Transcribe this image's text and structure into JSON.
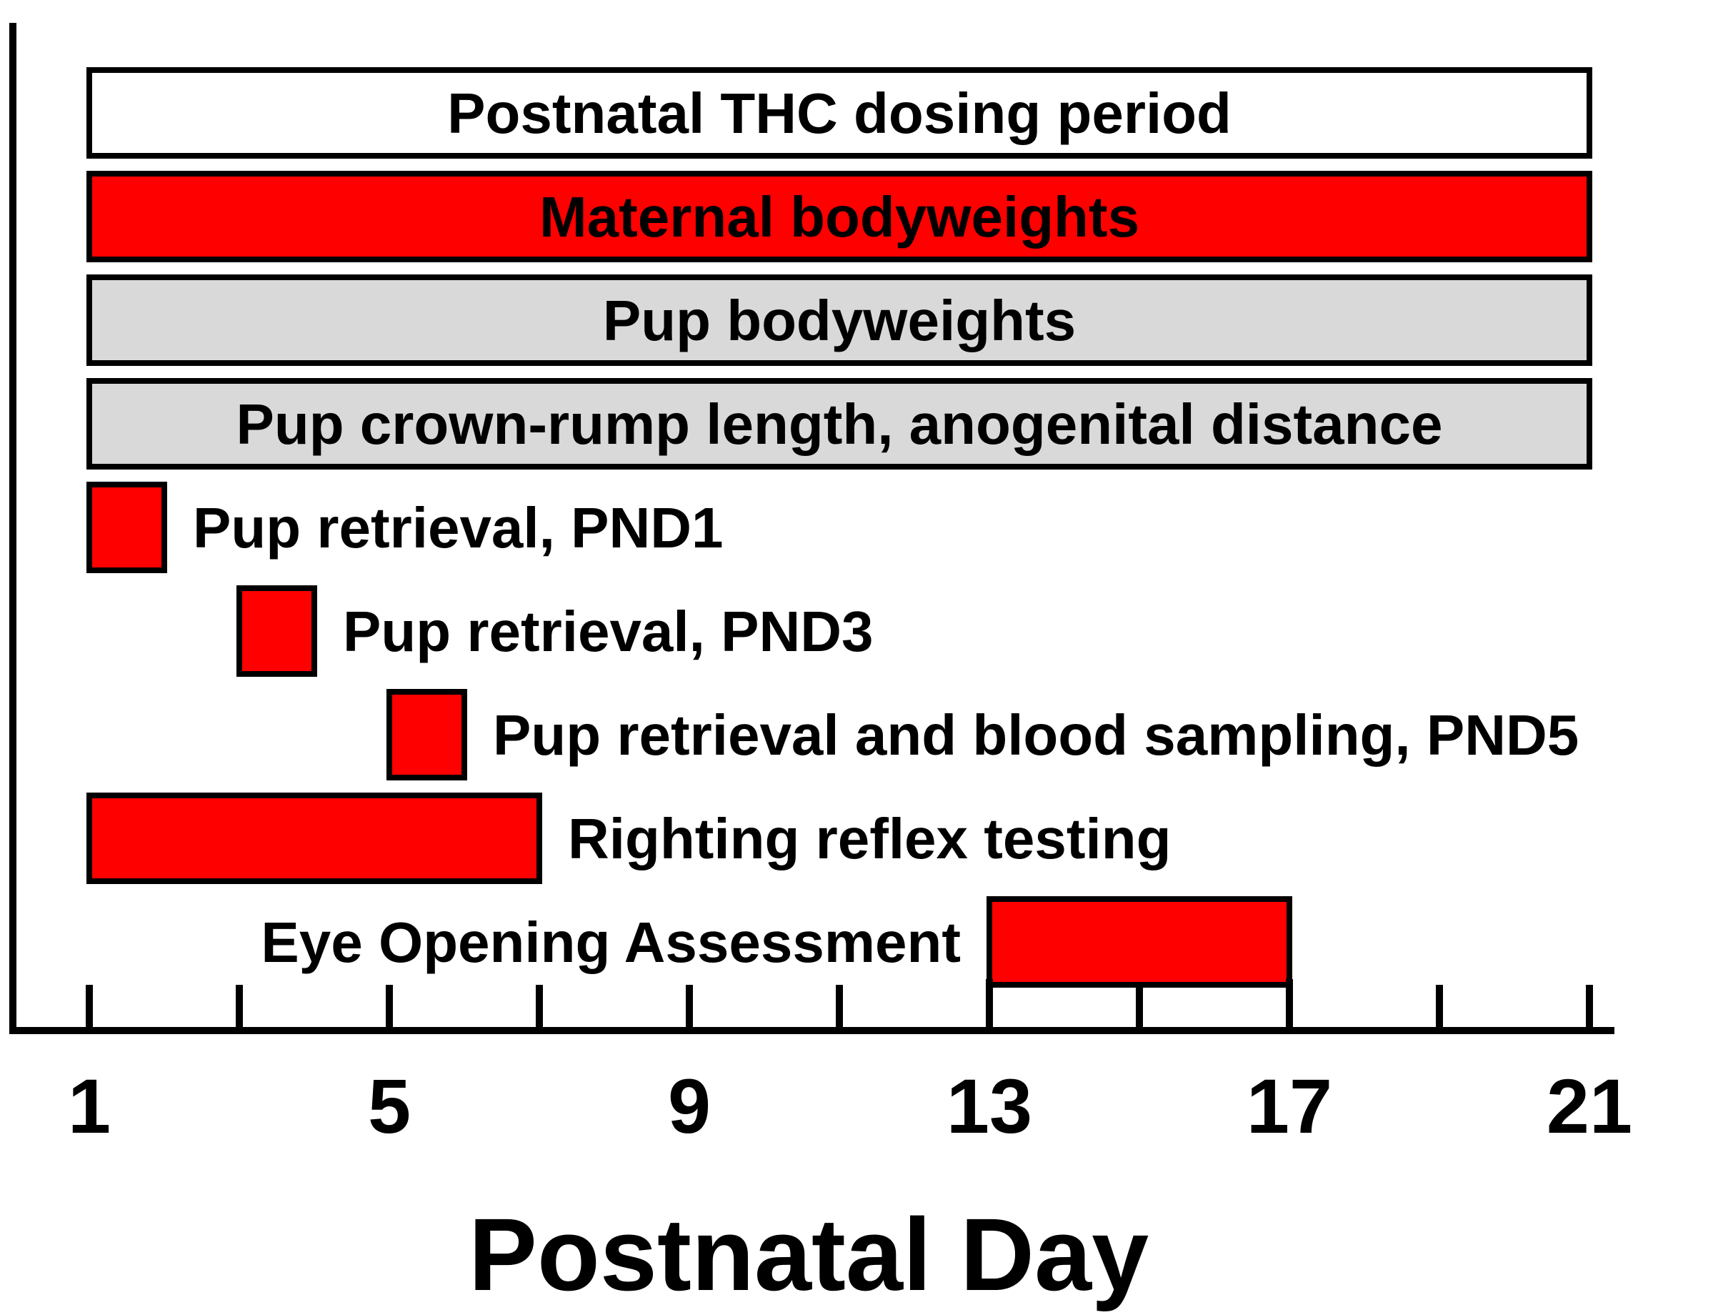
{
  "chart_data": {
    "type": "gantt",
    "xlabel": "Postnatal Day",
    "xlim": [
      1,
      21
    ],
    "x_ticks": [
      1,
      3,
      5,
      7,
      9,
      11,
      13,
      15,
      17,
      19,
      21
    ],
    "x_tick_labels": [
      "1",
      "5",
      "9",
      "13",
      "17",
      "21"
    ],
    "bars": [
      {
        "label": "Postnatal THC dosing period",
        "start": 1,
        "end": 21,
        "color": "#ffffff",
        "label_position": "inside"
      },
      {
        "label": "Maternal bodyweights",
        "start": 1,
        "end": 21,
        "color": "#ff0000",
        "label_position": "inside"
      },
      {
        "label": "Pup bodyweights",
        "start": 1,
        "end": 21,
        "color": "#d9d9d9",
        "label_position": "inside"
      },
      {
        "label": "Pup crown-rump length, anogenital distance",
        "start": 1,
        "end": 21,
        "color": "#d9d9d9",
        "label_position": "inside"
      },
      {
        "label": "Pup retrieval, PND1",
        "start": 1,
        "end": 2,
        "color": "#ff0000",
        "label_position": "right"
      },
      {
        "label": "Pup retrieval, PND3",
        "start": 3,
        "end": 4,
        "color": "#ff0000",
        "label_position": "right"
      },
      {
        "label": "Pup retrieval and blood sampling, PND5",
        "start": 5,
        "end": 6,
        "color": "#ff0000",
        "label_position": "right"
      },
      {
        "label": "Righting reflex testing",
        "start": 1,
        "end": 7,
        "color": "#ff0000",
        "label_position": "right"
      },
      {
        "label": "Eye Opening Assessment",
        "start": 13,
        "end": 17,
        "color": "#ff0000",
        "label_position": "left"
      }
    ]
  }
}
